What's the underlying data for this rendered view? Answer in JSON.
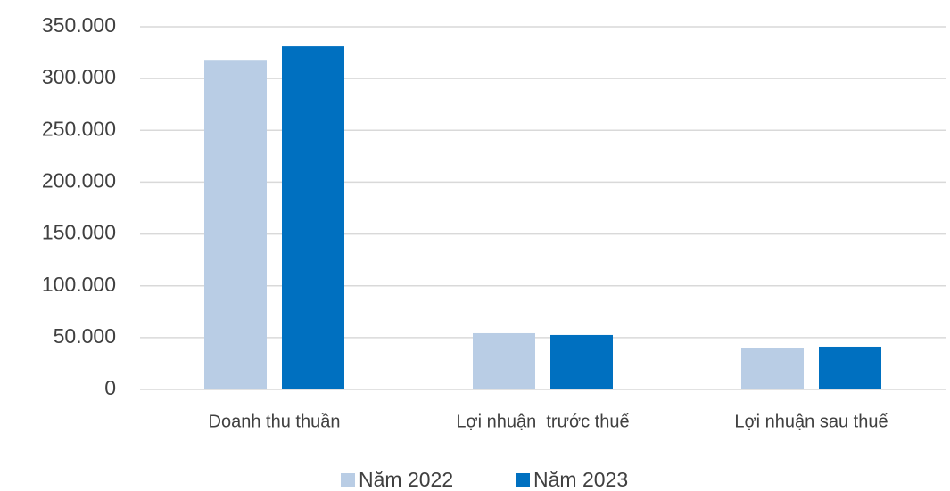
{
  "chart_data": {
    "type": "bar",
    "categories": [
      "Doanh thu thuần",
      "Lợi nhuận  trước thuế",
      "Lợi nhuận sau thuế"
    ],
    "series": [
      {
        "name": "Năm 2022",
        "color": "#b9cde5",
        "values": [
          318000,
          54200,
          39600
        ]
      },
      {
        "name": "Năm 2023",
        "color": "#0070c0",
        "values": [
          331000,
          52500,
          41300
        ]
      }
    ],
    "ylim": [
      0,
      350000
    ],
    "yticks": [
      0,
      {
        "value": 50000,
        "label": "50.000"
      },
      {
        "value": 100000,
        "label": "100.000"
      },
      {
        "value": 150000,
        "label": "150.000"
      },
      {
        "value": 200000,
        "label": "200.000"
      },
      {
        "value": 250000,
        "label": "250.000"
      },
      {
        "value": 300000,
        "label": "300.000"
      },
      {
        "value": 350000,
        "label": "350.000"
      }
    ],
    "grid": true,
    "legend": "bottom"
  }
}
